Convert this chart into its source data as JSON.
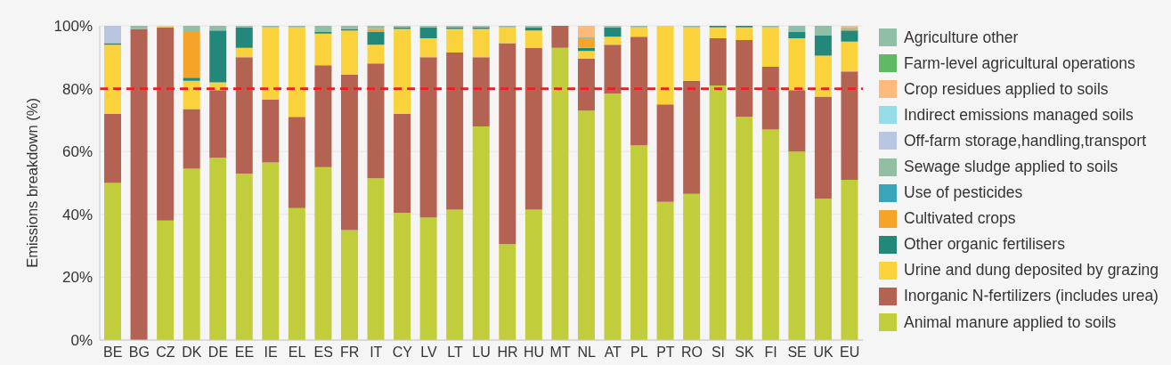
{
  "chart_data": {
    "type": "bar",
    "stacked": true,
    "ylabel": "Emissions breakdown (%)",
    "categories": [
      "BE",
      "BG",
      "CZ",
      "DK",
      "DE",
      "EE",
      "IE",
      "EL",
      "ES",
      "FR",
      "IT",
      "CY",
      "LV",
      "LT",
      "LU",
      "HR",
      "HU",
      "MT",
      "NL",
      "AT",
      "PL",
      "PT",
      "RO",
      "SI",
      "SK",
      "FI",
      "SE",
      "UK",
      "EU"
    ],
    "series": [
      {
        "name": "Animal manure applied to soils",
        "color": "#c2cd3c",
        "values": [
          50,
          null,
          38,
          54.5,
          58,
          53,
          56.5,
          42,
          55,
          35,
          51.5,
          40.5,
          39,
          41.5,
          68,
          30.5,
          41.5,
          93,
          73,
          78.5,
          62,
          44,
          46.5,
          81,
          71,
          67,
          60,
          45,
          51
        ]
      },
      {
        "name": "Inorganic N-fertilizers (includes urea)",
        "color": "#b46353",
        "values": [
          22,
          99,
          61.5,
          19,
          21.5,
          37,
          20,
          29,
          32.5,
          49.5,
          36.5,
          31.5,
          51,
          50,
          22,
          64,
          51.5,
          7,
          16.5,
          15.5,
          34.5,
          31,
          36,
          15,
          24.5,
          20,
          19.5,
          32.5,
          34.5
        ]
      },
      {
        "name": "Urine and dung deposited by grazing",
        "color": "#fad33c",
        "values": [
          22,
          null,
          0.5,
          9,
          2.5,
          3,
          23,
          28.5,
          10,
          14,
          6,
          27,
          6,
          7.5,
          9,
          5,
          5.5,
          null,
          2.5,
          2.5,
          3,
          25,
          17,
          3.5,
          4,
          12.5,
          16.5,
          13,
          9.5
        ]
      },
      {
        "name": "Other organic fertilisers",
        "color": "#22887a",
        "values": [
          0.5,
          null,
          null,
          1,
          16.5,
          6.5,
          null,
          null,
          0.5,
          0.5,
          4,
          0.5,
          3.5,
          0.5,
          0.5,
          null,
          1,
          null,
          1,
          3,
          null,
          null,
          null,
          0.5,
          0.5,
          null,
          2,
          6.5,
          3.5
        ]
      },
      {
        "name": "Cultivated crops",
        "color": "#f6a32a",
        "values": [
          null,
          null,
          null,
          14.5,
          null,
          null,
          null,
          null,
          null,
          null,
          1,
          null,
          null,
          null,
          null,
          null,
          null,
          null,
          3,
          null,
          null,
          null,
          null,
          null,
          null,
          null,
          null,
          null,
          0.5
        ]
      },
      {
        "name": "Use of pesticides",
        "color": "#3aa5b9",
        "values": [
          null,
          null,
          null,
          null,
          null,
          null,
          null,
          null,
          null,
          null,
          null,
          null,
          null,
          null,
          null,
          null,
          null,
          null,
          null,
          null,
          null,
          null,
          null,
          null,
          null,
          null,
          null,
          null,
          null
        ]
      },
      {
        "name": "Sewage sludge applied to soils",
        "color": "#92bfa4",
        "values": [
          null,
          null,
          null,
          null,
          null,
          null,
          null,
          null,
          null,
          null,
          null,
          null,
          null,
          null,
          null,
          null,
          null,
          null,
          0.5,
          null,
          null,
          null,
          null,
          null,
          null,
          null,
          null,
          null,
          0.5
        ]
      },
      {
        "name": "Off-farm storage,handling,transport",
        "color": "#b8c6e2",
        "values": [
          5.5,
          null,
          null,
          null,
          null,
          null,
          null,
          null,
          null,
          null,
          null,
          null,
          null,
          null,
          null,
          null,
          null,
          null,
          null,
          null,
          null,
          null,
          null,
          null,
          null,
          null,
          null,
          null,
          null
        ]
      },
      {
        "name": "Indirect emissions managed soils",
        "color": "#95dbe8",
        "values": [
          null,
          null,
          null,
          null,
          null,
          null,
          null,
          null,
          null,
          null,
          null,
          null,
          null,
          null,
          null,
          null,
          null,
          null,
          null,
          null,
          null,
          null,
          null,
          null,
          null,
          null,
          null,
          null,
          null
        ]
      },
      {
        "name": "Crop residues applied to soils",
        "color": "#fdba7b",
        "values": [
          null,
          null,
          null,
          null,
          null,
          null,
          null,
          null,
          null,
          null,
          null,
          null,
          null,
          null,
          null,
          null,
          null,
          null,
          3.5,
          null,
          null,
          null,
          null,
          null,
          null,
          null,
          null,
          null,
          0.5
        ]
      },
      {
        "name": "Farm-level agricultural operations",
        "color": "#5fba65",
        "values": [
          null,
          null,
          null,
          null,
          null,
          null,
          null,
          null,
          null,
          null,
          null,
          null,
          null,
          null,
          null,
          null,
          null,
          null,
          null,
          null,
          null,
          null,
          null,
          null,
          null,
          null,
          null,
          null,
          null
        ]
      },
      {
        "name": "Agriculture other",
        "color": "#8fbfa5",
        "values": [
          null,
          1,
          null,
          2,
          1.5,
          0.5,
          0.5,
          0.5,
          2,
          1,
          1,
          0.5,
          0.5,
          0.5,
          0.5,
          0.5,
          0.5,
          null,
          null,
          0.5,
          0.5,
          null,
          0.5,
          null,
          null,
          0.5,
          2,
          3,
          null
        ]
      }
    ],
    "ylim": [
      0,
      100
    ],
    "yticks": [
      {
        "value": 0,
        "label": "0%"
      },
      {
        "value": 20,
        "label": "20%"
      },
      {
        "value": 40,
        "label": "40%"
      },
      {
        "value": 60,
        "label": "60%"
      },
      {
        "value": 80,
        "label": "80%"
      },
      {
        "value": 100,
        "label": "100%"
      }
    ],
    "ref_lines": [
      {
        "axis": "y",
        "value": 80,
        "color": "#ee1c25",
        "line_style": "dashed"
      }
    ],
    "grid": "y",
    "legend": "right"
  }
}
